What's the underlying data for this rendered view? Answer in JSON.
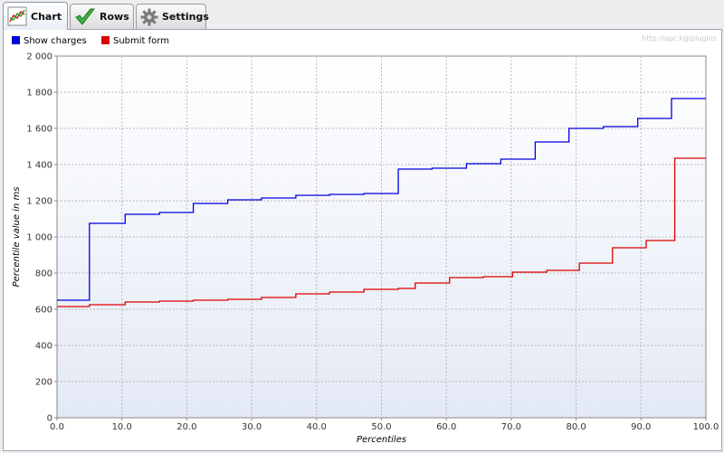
{
  "tabs": [
    {
      "label": "Chart",
      "icon": "line-chart-icon",
      "active": true
    },
    {
      "label": "Rows",
      "icon": "checkmark-icon",
      "active": false
    },
    {
      "label": "Settings",
      "icon": "gear-icon",
      "active": false
    }
  ],
  "watermark": "http://apc.kg/plugins",
  "chart_data": {
    "type": "line",
    "step": true,
    "xlabel": "Percentiles",
    "ylabel": "Percentile value in ms",
    "xlim": [
      0,
      100
    ],
    "ylim": [
      0,
      2000
    ],
    "x_ticks": [
      "0.0",
      "10.0",
      "20.0",
      "30.0",
      "40.0",
      "50.0",
      "60.0",
      "70.0",
      "80.0",
      "90.0",
      "100.0"
    ],
    "y_ticks": [
      "0",
      "200",
      "400",
      "600",
      "800",
      "1 000",
      "1 200",
      "1 400",
      "1 600",
      "1 800",
      "2 000"
    ],
    "legend_position": "top-left",
    "grid": true,
    "series": [
      {
        "name": "Show charges",
        "color": "#0000dd",
        "x": [
          0,
          5,
          10.5,
          15.8,
          21,
          26.3,
          31.5,
          36.8,
          42,
          47.3,
          52.6,
          57.8,
          63.1,
          68.4,
          73.7,
          78.9,
          84.2,
          89.5,
          94.7,
          100
        ],
        "y": [
          650,
          1075,
          1125,
          1135,
          1185,
          1205,
          1215,
          1230,
          1235,
          1240,
          1375,
          1380,
          1405,
          1430,
          1525,
          1600,
          1610,
          1655,
          1765,
          1765
        ]
      },
      {
        "name": "Submit form",
        "color": "#dd0000",
        "x": [
          0,
          5,
          10.5,
          15.8,
          21,
          26.3,
          31.5,
          36.8,
          42,
          47.3,
          52.6,
          55.2,
          60.5,
          65.7,
          70.2,
          75.5,
          80.5,
          85.6,
          90.8,
          95.2,
          100
        ],
        "y": [
          615,
          625,
          640,
          645,
          650,
          655,
          665,
          685,
          695,
          710,
          715,
          745,
          775,
          780,
          805,
          815,
          855,
          940,
          980,
          1435,
          1435
        ]
      }
    ]
  }
}
